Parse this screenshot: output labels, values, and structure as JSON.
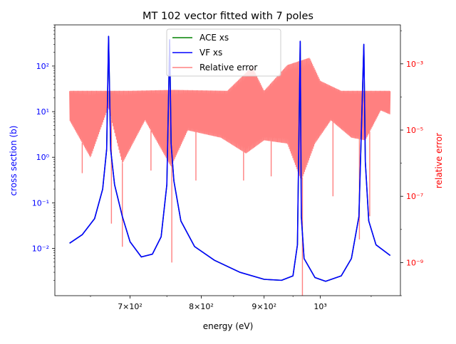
{
  "chart_data": {
    "type": "line",
    "title": "MT 102 vector fitted with 7 poles",
    "xlabel": "energy (eV)",
    "ylabel_left": "cross section (b)",
    "ylabel_right": "relative error",
    "x_scale": "log",
    "y_scale_left": "log",
    "y_scale_right": "log",
    "xlim": [
      608,
      1162
    ],
    "ylim_left": [
      0.00092,
      800
    ],
    "ylim_right": [
      1e-10,
      0.015
    ],
    "x_ticks": [
      {
        "value": 700,
        "label": "7×10²"
      },
      {
        "value": 800,
        "label": "8×10²"
      },
      {
        "value": 900,
        "label": "9×10²"
      },
      {
        "value": 1000,
        "label": "10³"
      }
    ],
    "y_ticks_left": [
      {
        "value": 0.01,
        "label": "10⁻²"
      },
      {
        "value": 0.1,
        "label": "10⁻¹"
      },
      {
        "value": 1,
        "label": "10⁰"
      },
      {
        "value": 10,
        "label": "10¹"
      },
      {
        "value": 100,
        "label": "10²"
      }
    ],
    "y_ticks_right": [
      {
        "value": 1e-09,
        "label": "10⁻⁹"
      },
      {
        "value": 1e-07,
        "label": "10⁻⁷"
      },
      {
        "value": 1e-05,
        "label": "10⁻⁵"
      },
      {
        "value": 0.001,
        "label": "10⁻³"
      }
    ],
    "legend": {
      "placement": "top-center",
      "entries": [
        {
          "label": "ACE xs",
          "color": "#008000"
        },
        {
          "label": "VF xs",
          "color": "#0000ff"
        },
        {
          "label": "Relative error",
          "color": "#ff8080"
        }
      ]
    },
    "grid": false,
    "colors": {
      "ace": "#008000",
      "vf": "#0000ff",
      "error": "#ff8080",
      "left_axis": "#0000ff",
      "right_axis": "#ff0000"
    },
    "series": [
      {
        "name": "VF xs",
        "axis": "left",
        "x": [
          625,
          640,
          655,
          665,
          670,
          672.4,
          675,
          680,
          690,
          700,
          715,
          730,
          742,
          750,
          754,
          756,
          760,
          770,
          790,
          820,
          860,
          900,
          930,
          950,
          958,
          963,
          965,
          970,
          990,
          1010,
          1040,
          1060,
          1075,
          1085,
          1088,
          1095,
          1110,
          1140
        ],
        "y": [
          0.013,
          0.02,
          0.045,
          0.2,
          1.5,
          450,
          1.5,
          0.25,
          0.05,
          0.014,
          0.0065,
          0.0075,
          0.018,
          0.25,
          380,
          2.0,
          0.3,
          0.04,
          0.011,
          0.0055,
          0.003,
          0.0021,
          0.002,
          0.0025,
          0.012,
          350,
          0.05,
          0.006,
          0.0023,
          0.0019,
          0.0025,
          0.006,
          0.05,
          300,
          0.8,
          0.04,
          0.012,
          0.007
        ]
      },
      {
        "name": "Relative error",
        "axis": "right",
        "x_range": [
          625,
          1140
        ],
        "upper_envelope": {
          "x": [
            625,
            700,
            760,
            840,
            880,
            900,
            940,
            980,
            1000,
            1040,
            1100,
            1140
          ],
          "y": [
            0.00015,
            0.00015,
            0.00016,
            0.00015,
            0.0008,
            0.00015,
            0.0009,
            0.0015,
            0.0003,
            0.00015,
            0.00015,
            0.00015
          ]
        },
        "lower_envelope": {
          "x": [
            625,
            650,
            672,
            690,
            720,
            756,
            780,
            830,
            870,
            900,
            940,
            965,
            990,
            1020,
            1060,
            1088,
            1120,
            1140
          ],
          "y": [
            2e-05,
            1.5e-06,
            5e-05,
            1e-06,
            2e-05,
            8e-07,
            1e-05,
            6e-06,
            2e-06,
            5e-06,
            4e-06,
            3e-07,
            4e-06,
            2e-05,
            6e-06,
            5e-06,
            4e-05,
            3e-05
          ]
        },
        "dips": {
          "x": [
            640,
            676,
            690,
            728,
            757,
            792,
            866,
            912,
            967,
            1024,
            1076,
            1097
          ],
          "y": [
            5e-07,
            1.5e-08,
            3e-09,
            6e-07,
            1e-09,
            3e-07,
            3e-07,
            4e-07,
            1e-10,
            1e-07,
            5e-09,
            2.5e-08
          ]
        }
      }
    ]
  }
}
